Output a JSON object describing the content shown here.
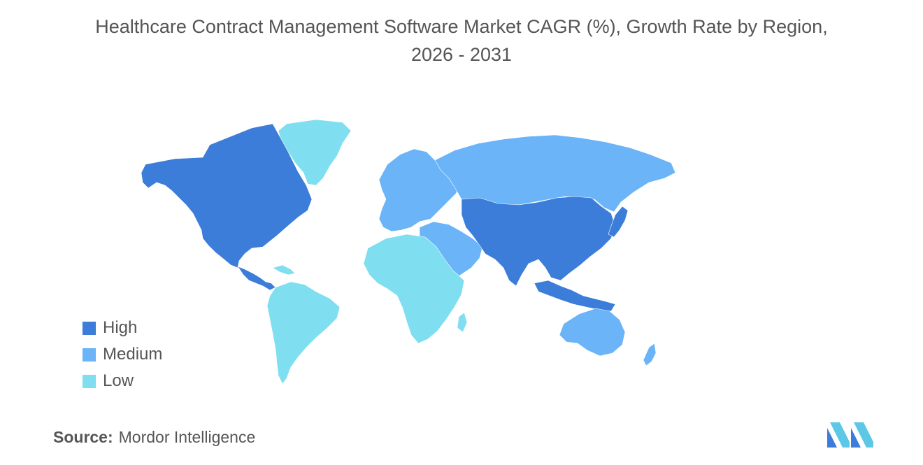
{
  "title": {
    "line1": "Healthcare Contract Management Software Market CAGR (%), Growth Rate by Region,",
    "line2": "2026 - 2031"
  },
  "legend": [
    {
      "label": "High",
      "color": "#3b7dd8"
    },
    {
      "label": "Medium",
      "color": "#6ab4f7"
    },
    {
      "label": "Low",
      "color": "#7fdeef"
    }
  ],
  "colors": {
    "high": "#3b7dd8",
    "medium": "#6ab4f7",
    "low": "#7fdeef",
    "no_data": "#a9a9a9",
    "logo": "#3b7dd8",
    "logo_accent": "#5cc8e6"
  },
  "regions": [
    {
      "name": "North America",
      "level": "High"
    },
    {
      "name": "Asia Pacific",
      "level": "High"
    },
    {
      "name": "Europe",
      "level": "Medium"
    },
    {
      "name": "Middle East",
      "level": "Medium"
    },
    {
      "name": "Australia and New Zealand",
      "level": "Medium"
    },
    {
      "name": "South America",
      "level": "Low"
    },
    {
      "name": "Africa",
      "level": "Low"
    },
    {
      "name": "Greenland",
      "level": "Low"
    }
  ],
  "source": {
    "label": "Source:",
    "text": "Mordor Intelligence"
  },
  "logo": {
    "name": "mordor-intelligence-logo"
  }
}
